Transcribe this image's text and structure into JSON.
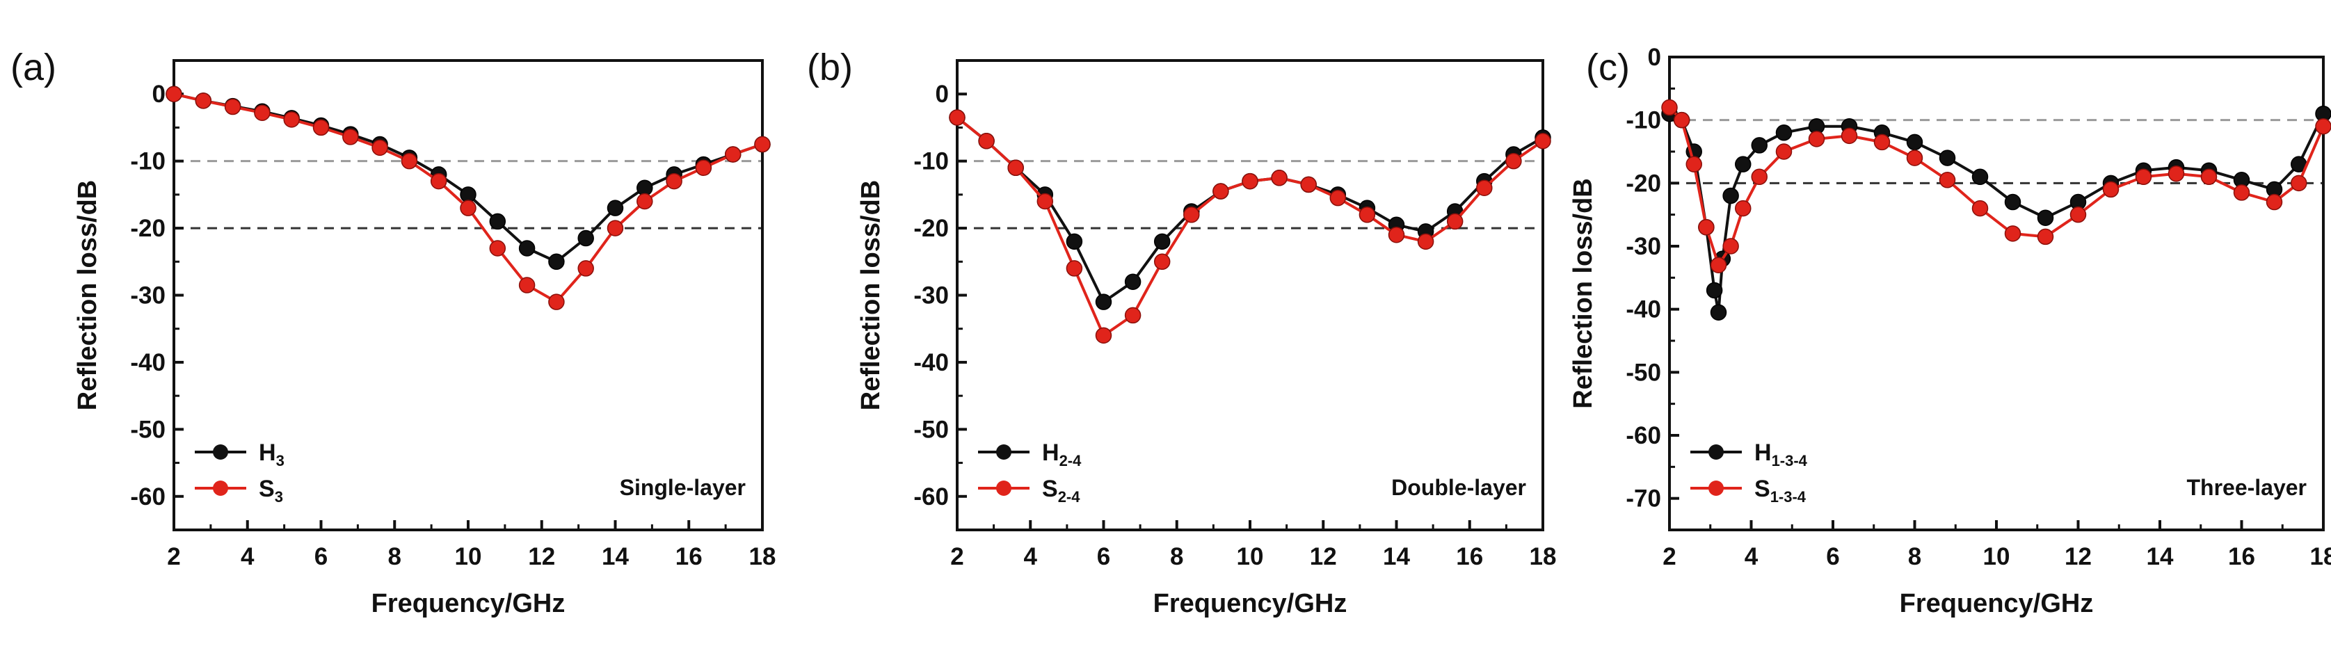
{
  "chart_data": [
    {
      "type": "line",
      "panel": "(a)",
      "title": "",
      "xlabel": "Frequency/GHz",
      "ylabel": "Reflection loss/dB",
      "xlim": [
        2,
        18
      ],
      "ylim": [
        -65,
        5
      ],
      "xticks": [
        2,
        4,
        6,
        8,
        10,
        12,
        14,
        16,
        18
      ],
      "yticks": [
        0,
        -10,
        -20,
        -30,
        -40,
        -50,
        -60
      ],
      "reference_lines": [
        -10,
        -20
      ],
      "annotation": "Single-layer",
      "legend": "bottom-left",
      "series": [
        {
          "name": "H",
          "sub": "3",
          "color": "#111111",
          "x": [
            2,
            2.8,
            3.6,
            4.4,
            5.2,
            6,
            6.8,
            7.6,
            8.4,
            9.2,
            10,
            10.8,
            11.6,
            12.4,
            13.2,
            14,
            14.8,
            15.6,
            16.4,
            17.2,
            18
          ],
          "y": [
            0,
            -1,
            -1.8,
            -2.6,
            -3.6,
            -4.7,
            -6,
            -7.5,
            -9.5,
            -12,
            -15,
            -19,
            -23,
            -25,
            -21.5,
            -17,
            -14,
            -12,
            -10.5,
            -9,
            -7.5
          ]
        },
        {
          "name": "S",
          "sub": "3",
          "color": "#e0241b",
          "x": [
            2,
            2.8,
            3.6,
            4.4,
            5.2,
            6,
            6.8,
            7.6,
            8.4,
            9.2,
            10,
            10.8,
            11.6,
            12.4,
            13.2,
            14,
            14.8,
            15.6,
            16.4,
            17.2,
            18
          ],
          "y": [
            0,
            -1,
            -1.9,
            -2.8,
            -3.8,
            -5,
            -6.4,
            -8,
            -10,
            -13,
            -17,
            -23,
            -28.5,
            -31,
            -26,
            -20,
            -16,
            -13,
            -11,
            -9,
            -7.5
          ]
        }
      ]
    },
    {
      "type": "line",
      "panel": "(b)",
      "title": "",
      "xlabel": "Frequency/GHz",
      "ylabel": "Reflection loss/dB",
      "xlim": [
        2,
        18
      ],
      "ylim": [
        -65,
        5
      ],
      "xticks": [
        2,
        4,
        6,
        8,
        10,
        12,
        14,
        16,
        18
      ],
      "yticks": [
        0,
        -10,
        -20,
        -30,
        -40,
        -50,
        -60
      ],
      "reference_lines": [
        -10,
        -20
      ],
      "annotation": "Double-layer",
      "legend": "bottom-left",
      "series": [
        {
          "name": "H",
          "sub": "2-4",
          "color": "#111111",
          "x": [
            2,
            2.8,
            3.6,
            4.4,
            5.2,
            6,
            6.8,
            7.6,
            8.4,
            9.2,
            10,
            10.8,
            11.6,
            12.4,
            13.2,
            14,
            14.8,
            15.6,
            16.4,
            17.2,
            18
          ],
          "y": [
            -3.5,
            -7,
            -11,
            -15,
            -22,
            -31,
            -28,
            -22,
            -17.5,
            -14.5,
            -13,
            -12.5,
            -13.5,
            -15,
            -17,
            -19.5,
            -20.5,
            -17.5,
            -13,
            -9,
            -6.5
          ]
        },
        {
          "name": "S",
          "sub": "2-4",
          "color": "#e0241b",
          "x": [
            2,
            2.8,
            3.6,
            4.4,
            5.2,
            6,
            6.8,
            7.6,
            8.4,
            9.2,
            10,
            10.8,
            11.6,
            12.4,
            13.2,
            14,
            14.8,
            15.6,
            16.4,
            17.2,
            18
          ],
          "y": [
            -3.5,
            -7,
            -11,
            -16,
            -26,
            -36,
            -33,
            -25,
            -18,
            -14.5,
            -13,
            -12.5,
            -13.5,
            -15.5,
            -18,
            -21,
            -22,
            -19,
            -14,
            -10,
            -7
          ]
        }
      ]
    },
    {
      "type": "line",
      "panel": "(c)",
      "title": "",
      "xlabel": "Frequency/GHz",
      "ylabel": "Reflection loss/dB",
      "xlim": [
        2,
        18
      ],
      "ylim": [
        -75,
        0
      ],
      "xticks": [
        2,
        4,
        6,
        8,
        10,
        12,
        14,
        16,
        18
      ],
      "yticks": [
        0,
        -10,
        -20,
        -30,
        -40,
        -50,
        -60,
        -70
      ],
      "reference_lines": [
        -10,
        -20
      ],
      "annotation": "Three-layer",
      "legend": "bottom-left",
      "series": [
        {
          "name": "H",
          "sub": "1-3-4",
          "color": "#111111",
          "x": [
            2,
            2.3,
            2.6,
            2.9,
            3.1,
            3.2,
            3.3,
            3.5,
            3.8,
            4.2,
            4.8,
            5.6,
            6.4,
            7.2,
            8,
            8.8,
            9.6,
            10.4,
            11.2,
            12,
            12.8,
            13.6,
            14.4,
            15.2,
            16,
            16.8,
            17.4,
            18
          ],
          "y": [
            -9,
            -10,
            -15,
            -27,
            -37,
            -40.5,
            -32,
            -22,
            -17,
            -14,
            -12,
            -11,
            -11,
            -12,
            -13.5,
            -16,
            -19,
            -23,
            -25.5,
            -23,
            -20,
            -18,
            -17.5,
            -18,
            -19.5,
            -21,
            -17,
            -9
          ]
        },
        {
          "name": "S",
          "sub": "1-3-4",
          "color": "#e0241b",
          "x": [
            2,
            2.3,
            2.6,
            2.9,
            3.2,
            3.5,
            3.8,
            4.2,
            4.8,
            5.6,
            6.4,
            7.2,
            8,
            8.8,
            9.6,
            10.4,
            11.2,
            12,
            12.8,
            13.6,
            14.4,
            15.2,
            16,
            16.8,
            17.4,
            18
          ],
          "y": [
            -8,
            -10,
            -17,
            -27,
            -33,
            -30,
            -24,
            -19,
            -15,
            -13,
            -12.5,
            -13.5,
            -16,
            -19.5,
            -24,
            -28,
            -28.5,
            -25,
            -21,
            -19,
            -18.5,
            -19,
            -21.5,
            -23,
            -20,
            -11
          ]
        }
      ]
    }
  ]
}
